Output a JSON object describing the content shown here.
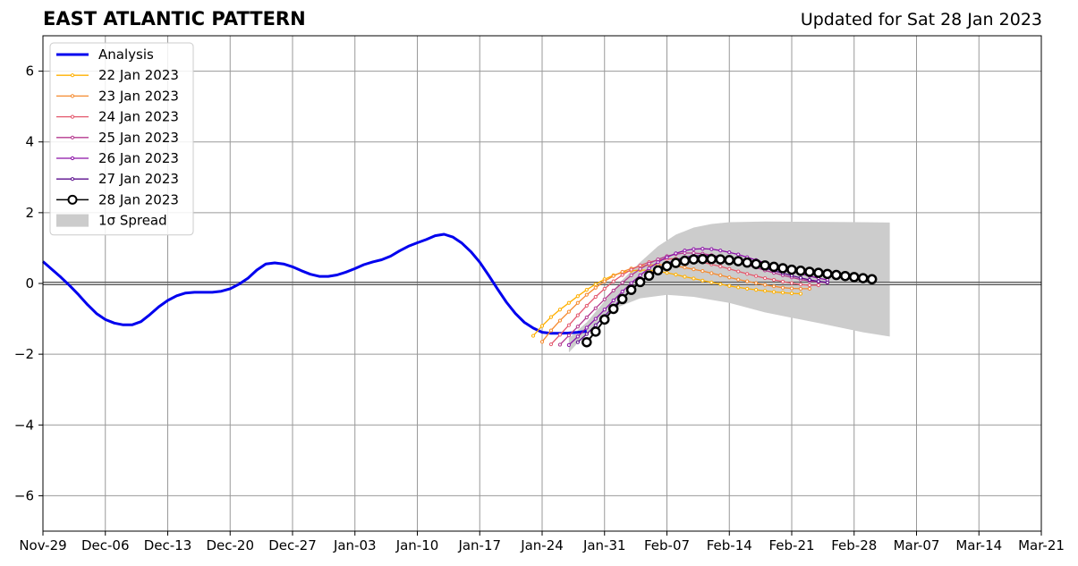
{
  "chart_data": {
    "type": "line",
    "title": "EAST ATLANTIC PATTERN",
    "subtitle": "Updated for Sat 28 Jan 2023",
    "xlabel": "",
    "ylabel": "",
    "x_ticks": [
      "Nov-29",
      "Dec-06",
      "Dec-13",
      "Dec-20",
      "Dec-27",
      "Jan-03",
      "Jan-10",
      "Jan-17",
      "Jan-24",
      "Jan-31",
      "Feb-07",
      "Feb-14",
      "Feb-21",
      "Feb-28",
      "Mar-07",
      "Mar-14",
      "Mar-21"
    ],
    "xlim": [
      "2022-11-29",
      "2023-03-21"
    ],
    "ylim": [
      -7,
      7
    ],
    "y_ticks": [
      -6,
      -4,
      -2,
      0,
      2,
      4,
      6
    ],
    "y_tick_labels": [
      "−6",
      "−4",
      "−2",
      "0",
      "2",
      "4",
      "6"
    ],
    "grid": true,
    "legend_position": "top-left",
    "analysis": {
      "name": "Analysis",
      "color": "#0000ee",
      "points": [
        [
          "2022-11-29",
          0.62
        ],
        [
          "2022-11-30",
          0.4
        ],
        [
          "2022-12-01",
          0.18
        ],
        [
          "2022-12-02",
          -0.06
        ],
        [
          "2022-12-03",
          -0.32
        ],
        [
          "2022-12-04",
          -0.6
        ],
        [
          "2022-12-05",
          -0.85
        ],
        [
          "2022-12-06",
          -1.02
        ],
        [
          "2022-12-07",
          -1.12
        ],
        [
          "2022-12-08",
          -1.17
        ],
        [
          "2022-12-09",
          -1.17
        ],
        [
          "2022-12-10",
          -1.08
        ],
        [
          "2022-12-11",
          -0.88
        ],
        [
          "2022-12-12",
          -0.66
        ],
        [
          "2022-12-13",
          -0.48
        ],
        [
          "2022-12-14",
          -0.35
        ],
        [
          "2022-12-15",
          -0.27
        ],
        [
          "2022-12-16",
          -0.25
        ],
        [
          "2022-12-17",
          -0.25
        ],
        [
          "2022-12-18",
          -0.25
        ],
        [
          "2022-12-19",
          -0.22
        ],
        [
          "2022-12-20",
          -0.15
        ],
        [
          "2022-12-21",
          -0.02
        ],
        [
          "2022-12-22",
          0.15
        ],
        [
          "2022-12-23",
          0.38
        ],
        [
          "2022-12-24",
          0.55
        ],
        [
          "2022-12-25",
          0.58
        ],
        [
          "2022-12-26",
          0.55
        ],
        [
          "2022-12-27",
          0.47
        ],
        [
          "2022-12-28",
          0.36
        ],
        [
          "2022-12-29",
          0.26
        ],
        [
          "2022-12-30",
          0.2
        ],
        [
          "2022-12-31",
          0.2
        ],
        [
          "2023-01-01",
          0.24
        ],
        [
          "2023-01-02",
          0.32
        ],
        [
          "2023-01-03",
          0.42
        ],
        [
          "2023-01-04",
          0.53
        ],
        [
          "2023-01-05",
          0.61
        ],
        [
          "2023-01-06",
          0.67
        ],
        [
          "2023-01-07",
          0.77
        ],
        [
          "2023-01-08",
          0.92
        ],
        [
          "2023-01-09",
          1.05
        ],
        [
          "2023-01-10",
          1.15
        ],
        [
          "2023-01-11",
          1.24
        ],
        [
          "2023-01-12",
          1.35
        ],
        [
          "2023-01-13",
          1.39
        ],
        [
          "2023-01-14",
          1.31
        ],
        [
          "2023-01-15",
          1.14
        ],
        [
          "2023-01-16",
          0.9
        ],
        [
          "2023-01-17",
          0.6
        ],
        [
          "2023-01-18",
          0.23
        ],
        [
          "2023-01-19",
          -0.16
        ],
        [
          "2023-01-20",
          -0.53
        ],
        [
          "2023-01-21",
          -0.85
        ],
        [
          "2023-01-22",
          -1.1
        ],
        [
          "2023-01-23",
          -1.26
        ],
        [
          "2023-01-24",
          -1.38
        ],
        [
          "2023-01-25",
          -1.41
        ],
        [
          "2023-01-26",
          -1.41
        ],
        [
          "2023-01-27",
          -1.4
        ],
        [
          "2023-01-28",
          -1.38
        ],
        [
          "2023-01-29",
          -1.35
        ]
      ]
    },
    "spread": {
      "name": "1σ Spread",
      "color": "#cccccc",
      "upper": [
        [
          "2023-01-27",
          -1.55
        ],
        [
          "2023-01-29",
          -1.1
        ],
        [
          "2023-01-31",
          -0.5
        ],
        [
          "2023-02-02",
          0.1
        ],
        [
          "2023-02-04",
          0.6
        ],
        [
          "2023-02-06",
          1.05
        ],
        [
          "2023-02-08",
          1.38
        ],
        [
          "2023-02-10",
          1.58
        ],
        [
          "2023-02-12",
          1.68
        ],
        [
          "2023-02-14",
          1.73
        ],
        [
          "2023-02-18",
          1.75
        ],
        [
          "2023-02-24",
          1.74
        ],
        [
          "2023-03-01",
          1.73
        ],
        [
          "2023-03-04",
          1.72
        ]
      ],
      "lower": [
        [
          "2023-03-04",
          -1.5
        ],
        [
          "2023-03-01",
          -1.38
        ],
        [
          "2023-02-24",
          -1.12
        ],
        [
          "2023-02-18",
          -0.82
        ],
        [
          "2023-02-14",
          -0.55
        ],
        [
          "2023-02-10",
          -0.38
        ],
        [
          "2023-02-07",
          -0.32
        ],
        [
          "2023-02-04",
          -0.42
        ],
        [
          "2023-02-01",
          -0.72
        ],
        [
          "2023-01-30",
          -1.2
        ],
        [
          "2023-01-28",
          -1.68
        ],
        [
          "2023-01-27",
          -1.95
        ]
      ]
    },
    "forecasts": [
      {
        "name": "22 Jan 2023",
        "color": "#ffb000",
        "start": "2023-01-23",
        "values": [
          -1.48,
          -1.2,
          -0.95,
          -0.74,
          -0.55,
          -0.36,
          -0.18,
          -0.02,
          0.12,
          0.23,
          0.31,
          0.36,
          0.38,
          0.37,
          0.34,
          0.3,
          0.25,
          0.19,
          0.14,
          0.08,
          0.03,
          -0.02,
          -0.07,
          -0.11,
          -0.15,
          -0.18,
          -0.21,
          -0.24,
          -0.26,
          -0.28,
          -0.29
        ]
      },
      {
        "name": "23 Jan 2023",
        "color": "#f58a2e",
        "start": "2023-01-24",
        "values": [
          -1.65,
          -1.33,
          -1.05,
          -0.8,
          -0.55,
          -0.32,
          -0.12,
          0.06,
          0.21,
          0.33,
          0.42,
          0.49,
          0.52,
          0.53,
          0.52,
          0.49,
          0.45,
          0.4,
          0.35,
          0.29,
          0.23,
          0.17,
          0.11,
          0.06,
          0.01,
          -0.04,
          -0.08,
          -0.12,
          -0.14,
          -0.15,
          -0.15
        ]
      },
      {
        "name": "24 Jan 2023",
        "color": "#e4586d",
        "start": "2023-01-25",
        "values": [
          -1.72,
          -1.45,
          -1.18,
          -0.9,
          -0.63,
          -0.38,
          -0.15,
          0.06,
          0.24,
          0.39,
          0.51,
          0.6,
          0.66,
          0.69,
          0.7,
          0.68,
          0.65,
          0.6,
          0.54,
          0.48,
          0.41,
          0.34,
          0.27,
          0.21,
          0.15,
          0.1,
          0.05,
          0.01,
          -0.03,
          -0.05,
          -0.05
        ]
      },
      {
        "name": "25 Jan 2023",
        "color": "#b4398f",
        "start": "2023-01-26",
        "values": [
          -1.73,
          -1.47,
          -1.22,
          -0.96,
          -0.7,
          -0.45,
          -0.2,
          0.02,
          0.23,
          0.41,
          0.56,
          0.68,
          0.77,
          0.83,
          0.86,
          0.86,
          0.84,
          0.8,
          0.75,
          0.68,
          0.61,
          0.53,
          0.45,
          0.37,
          0.3,
          0.23,
          0.17,
          0.11,
          0.07,
          0.04,
          0.02
        ]
      },
      {
        "name": "26 Jan 2023",
        "color": "#8c12a8",
        "start": "2023-01-27",
        "values": [
          -1.74,
          -1.5,
          -1.25,
          -1.0,
          -0.74,
          -0.48,
          -0.23,
          0.01,
          0.23,
          0.43,
          0.6,
          0.74,
          0.85,
          0.93,
          0.97,
          0.98,
          0.97,
          0.93,
          0.88,
          0.82,
          0.74,
          0.66,
          0.58,
          0.5,
          0.42,
          0.34,
          0.27,
          0.21,
          0.15,
          0.1
        ]
      },
      {
        "name": "27 Jan 2023",
        "color": "#5a0c8c",
        "start": "2023-01-28",
        "values": [
          -1.66,
          -1.43,
          -1.18,
          -0.92,
          -0.66,
          -0.41,
          -0.17,
          0.05,
          0.25,
          0.42,
          0.56,
          0.67,
          0.74,
          0.78,
          0.79,
          0.78,
          0.75,
          0.7,
          0.64,
          0.57,
          0.5,
          0.43,
          0.36,
          0.29,
          0.22,
          0.16,
          0.1,
          0.06,
          0.03
        ]
      },
      {
        "name": "28 Jan 2023",
        "color": "#000000",
        "start": "2023-01-29",
        "values": [
          -1.66,
          -1.36,
          -1.02,
          -0.72,
          -0.44,
          -0.18,
          0.04,
          0.22,
          0.37,
          0.49,
          0.58,
          0.64,
          0.68,
          0.69,
          0.69,
          0.68,
          0.66,
          0.63,
          0.59,
          0.55,
          0.51,
          0.47,
          0.43,
          0.39,
          0.36,
          0.33,
          0.3,
          0.27,
          0.24,
          0.21,
          0.18,
          0.15,
          0.12
        ]
      }
    ]
  }
}
